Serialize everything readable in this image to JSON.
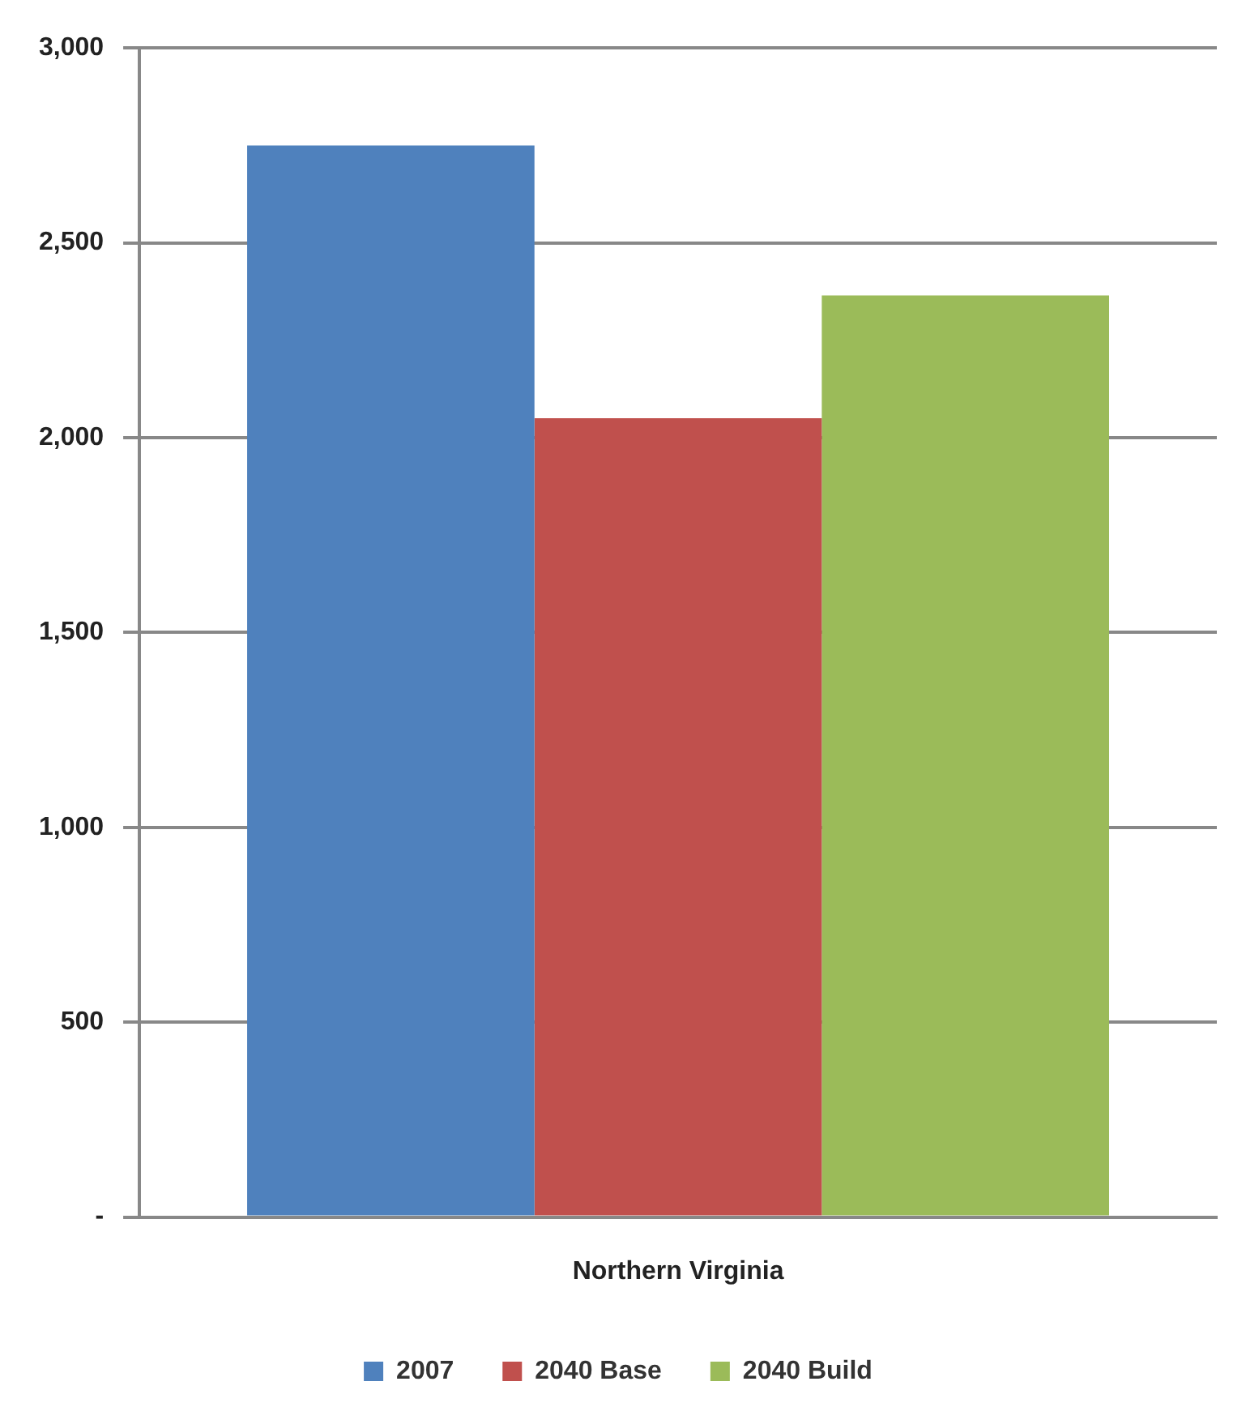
{
  "chart_data": {
    "type": "bar",
    "categories": [
      "Northern Virginia"
    ],
    "series": [
      {
        "name": "2007",
        "color": "#4f81bd",
        "values": [
          2750
        ]
      },
      {
        "name": "2040 Base",
        "color": "#c0504d",
        "values": [
          2050
        ]
      },
      {
        "name": "2040 Build",
        "color": "#9bbb59",
        "values": [
          2365
        ]
      }
    ],
    "ylim": [
      0,
      3000
    ],
    "yticks": [
      {
        "value": 0,
        "label": "-"
      },
      {
        "value": 500,
        "label": "500"
      },
      {
        "value": 1000,
        "label": "1,000"
      },
      {
        "value": 1500,
        "label": "1,500"
      },
      {
        "value": 2000,
        "label": "2,000"
      },
      {
        "value": 2500,
        "label": "2,500"
      },
      {
        "value": 3000,
        "label": "3,000"
      }
    ],
    "grid": "y",
    "legend": "bottom"
  }
}
